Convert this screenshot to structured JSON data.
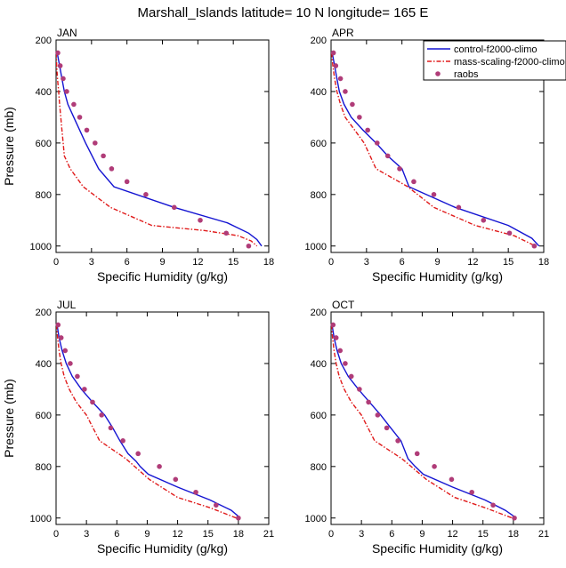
{
  "figure": {
    "title": "Marshall_Islands  latitude= 10 N longitude= 165 E"
  },
  "colors": {
    "control": "#1414d2",
    "mass": "#e01b1b",
    "raobs": "#b03c78"
  },
  "chart_data": [
    {
      "type": "line",
      "panel_label": "JAN",
      "xlabel": "Specific Humidity (g/kg)",
      "ylabel": "Pressure (mb)",
      "xlim": [
        0,
        18
      ],
      "ylim": [
        200,
        1025
      ],
      "y_reversed": true,
      "xticks": [
        0,
        3,
        6,
        9,
        12,
        15,
        18
      ],
      "yticks": [
        200,
        400,
        600,
        800,
        1000
      ],
      "show_legend": false,
      "series": [
        {
          "name": "control-f2000-climo",
          "style": "solid",
          "color": "control",
          "x": [
            0.1,
            0.3,
            0.5,
            0.7,
            1.0,
            1.5,
            2.5,
            3.6,
            4.9,
            10.0,
            14.5,
            16.3,
            17.0,
            17.4
          ],
          "y": [
            250,
            300,
            350,
            400,
            450,
            500,
            600,
            700,
            770,
            850,
            910,
            950,
            975,
            1000
          ]
        },
        {
          "name": "mass-scaling-f2000-climo",
          "style": "dashed",
          "color": "mass",
          "x": [
            0.02,
            0.05,
            0.12,
            0.22,
            0.3,
            0.4,
            0.5,
            0.6,
            0.7,
            1.2,
            2.3,
            4.6,
            8.1,
            12.6,
            15.4,
            16.5,
            17.0
          ],
          "y": [
            250,
            300,
            350,
            400,
            450,
            500,
            550,
            600,
            650,
            700,
            770,
            850,
            920,
            940,
            960,
            980,
            1000
          ]
        },
        {
          "name": "raobs",
          "style": "markers",
          "color": "raobs",
          "x": [
            0.15,
            0.35,
            0.6,
            0.9,
            1.5,
            2.0,
            2.6,
            3.3,
            4.0,
            4.7,
            6.0,
            7.6,
            10.0,
            12.2,
            14.4,
            16.3
          ],
          "y": [
            250,
            300,
            350,
            400,
            450,
            500,
            550,
            600,
            650,
            700,
            750,
            800,
            850,
            900,
            950,
            1000
          ]
        }
      ]
    },
    {
      "type": "line",
      "panel_label": "APR",
      "xlabel": "Specific Humidity (g/kg)",
      "ylabel": "",
      "xlim": [
        0,
        18
      ],
      "ylim": [
        200,
        1025
      ],
      "y_reversed": true,
      "xticks": [
        0,
        3,
        6,
        9,
        12,
        15,
        18
      ],
      "yticks": [
        200,
        400,
        600,
        800,
        1000
      ],
      "show_legend": true,
      "legend_location": "top-right",
      "series": [
        {
          "name": "control-f2000-climo",
          "style": "solid",
          "color": "control",
          "x": [
            0.1,
            0.3,
            0.5,
            0.7,
            1.1,
            1.7,
            2.7,
            3.8,
            4.8,
            6.0,
            6.6,
            10.5,
            15.0,
            17.0,
            17.6
          ],
          "y": [
            250,
            300,
            350,
            400,
            450,
            500,
            550,
            600,
            650,
            700,
            770,
            850,
            920,
            970,
            1000
          ]
        },
        {
          "name": "mass-scaling-f2000-climo",
          "style": "dashed",
          "color": "mass",
          "x": [
            0.05,
            0.15,
            0.3,
            0.5,
            0.8,
            1.2,
            2.0,
            2.8,
            3.8,
            6.5,
            8.7,
            12.2,
            15.5,
            17.3
          ],
          "y": [
            250,
            300,
            350,
            400,
            450,
            500,
            550,
            600,
            700,
            770,
            850,
            920,
            960,
            1000
          ]
        },
        {
          "name": "raobs",
          "style": "markers",
          "color": "raobs",
          "x": [
            0.2,
            0.4,
            0.8,
            1.2,
            1.8,
            2.4,
            3.1,
            3.9,
            4.8,
            5.8,
            7.0,
            8.7,
            10.8,
            12.9,
            15.1,
            17.2
          ],
          "y": [
            250,
            300,
            350,
            400,
            450,
            500,
            550,
            600,
            650,
            700,
            750,
            800,
            850,
            900,
            950,
            1000
          ]
        }
      ]
    },
    {
      "type": "line",
      "panel_label": "JUL",
      "xlabel": "Specific Humidity (g/kg)",
      "ylabel": "Pressure (mb)",
      "xlim": [
        0,
        21
      ],
      "ylim": [
        200,
        1025
      ],
      "y_reversed": true,
      "xticks": [
        0,
        3,
        6,
        9,
        12,
        15,
        18,
        21
      ],
      "yticks": [
        200,
        400,
        600,
        800,
        1000
      ],
      "show_legend": false,
      "series": [
        {
          "name": "control-f2000-climo",
          "style": "solid",
          "color": "control",
          "x": [
            0.1,
            0.3,
            0.6,
            1.0,
            1.6,
            2.5,
            3.6,
            4.8,
            5.6,
            6.3,
            7.1,
            7.9,
            8.3,
            9.1,
            12.0,
            15.2,
            17.3,
            18.2
          ],
          "y": [
            250,
            300,
            350,
            400,
            450,
            500,
            550,
            600,
            650,
            700,
            750,
            780,
            800,
            830,
            880,
            930,
            970,
            1000
          ]
        },
        {
          "name": "mass-scaling-f2000-climo",
          "style": "dashed",
          "color": "mass",
          "x": [
            0.05,
            0.15,
            0.3,
            0.5,
            0.8,
            1.3,
            2.0,
            3.0,
            4.3,
            6.9,
            9.2,
            12.0,
            15.2,
            17.8
          ],
          "y": [
            250,
            300,
            350,
            400,
            450,
            500,
            550,
            600,
            700,
            770,
            850,
            920,
            960,
            1000
          ]
        },
        {
          "name": "raobs",
          "style": "markers",
          "color": "raobs",
          "x": [
            0.2,
            0.5,
            0.9,
            1.4,
            2.1,
            2.8,
            3.6,
            4.5,
            5.4,
            6.6,
            8.1,
            10.2,
            11.8,
            13.8,
            15.8,
            18.0
          ],
          "y": [
            250,
            300,
            350,
            400,
            450,
            500,
            550,
            600,
            650,
            700,
            750,
            800,
            850,
            900,
            950,
            1000
          ]
        }
      ]
    },
    {
      "type": "line",
      "panel_label": "OCT",
      "xlabel": "Specific Humidity (g/kg)",
      "ylabel": "",
      "xlim": [
        0,
        21
      ],
      "ylim": [
        200,
        1025
      ],
      "y_reversed": true,
      "xticks": [
        0,
        3,
        6,
        9,
        12,
        15,
        18,
        21
      ],
      "yticks": [
        200,
        400,
        600,
        800,
        1000
      ],
      "show_legend": false,
      "series": [
        {
          "name": "control-f2000-climo",
          "style": "solid",
          "color": "control",
          "x": [
            0.1,
            0.3,
            0.6,
            1.0,
            1.7,
            2.7,
            3.8,
            4.9,
            5.9,
            6.9,
            7.6,
            8.3,
            9.1,
            12.0,
            15.2,
            17.2,
            18.3
          ],
          "y": [
            250,
            300,
            350,
            400,
            450,
            500,
            550,
            600,
            650,
            700,
            770,
            800,
            830,
            880,
            930,
            970,
            1000
          ]
        },
        {
          "name": "mass-scaling-f2000-climo",
          "style": "dashed",
          "color": "mass",
          "x": [
            0.05,
            0.15,
            0.3,
            0.5,
            0.8,
            1.3,
            2.0,
            3.0,
            4.3,
            7.0,
            9.4,
            12.2,
            15.2,
            17.9
          ],
          "y": [
            250,
            300,
            350,
            400,
            450,
            500,
            550,
            600,
            700,
            770,
            850,
            920,
            960,
            1000
          ]
        },
        {
          "name": "raobs",
          "style": "markers",
          "color": "raobs",
          "x": [
            0.2,
            0.5,
            0.9,
            1.4,
            2.0,
            2.8,
            3.7,
            4.6,
            5.5,
            6.6,
            8.5,
            10.2,
            11.9,
            13.9,
            16.0,
            18.1
          ],
          "y": [
            250,
            300,
            350,
            400,
            450,
            500,
            550,
            600,
            650,
            700,
            750,
            800,
            850,
            900,
            950,
            1000
          ]
        }
      ]
    }
  ]
}
